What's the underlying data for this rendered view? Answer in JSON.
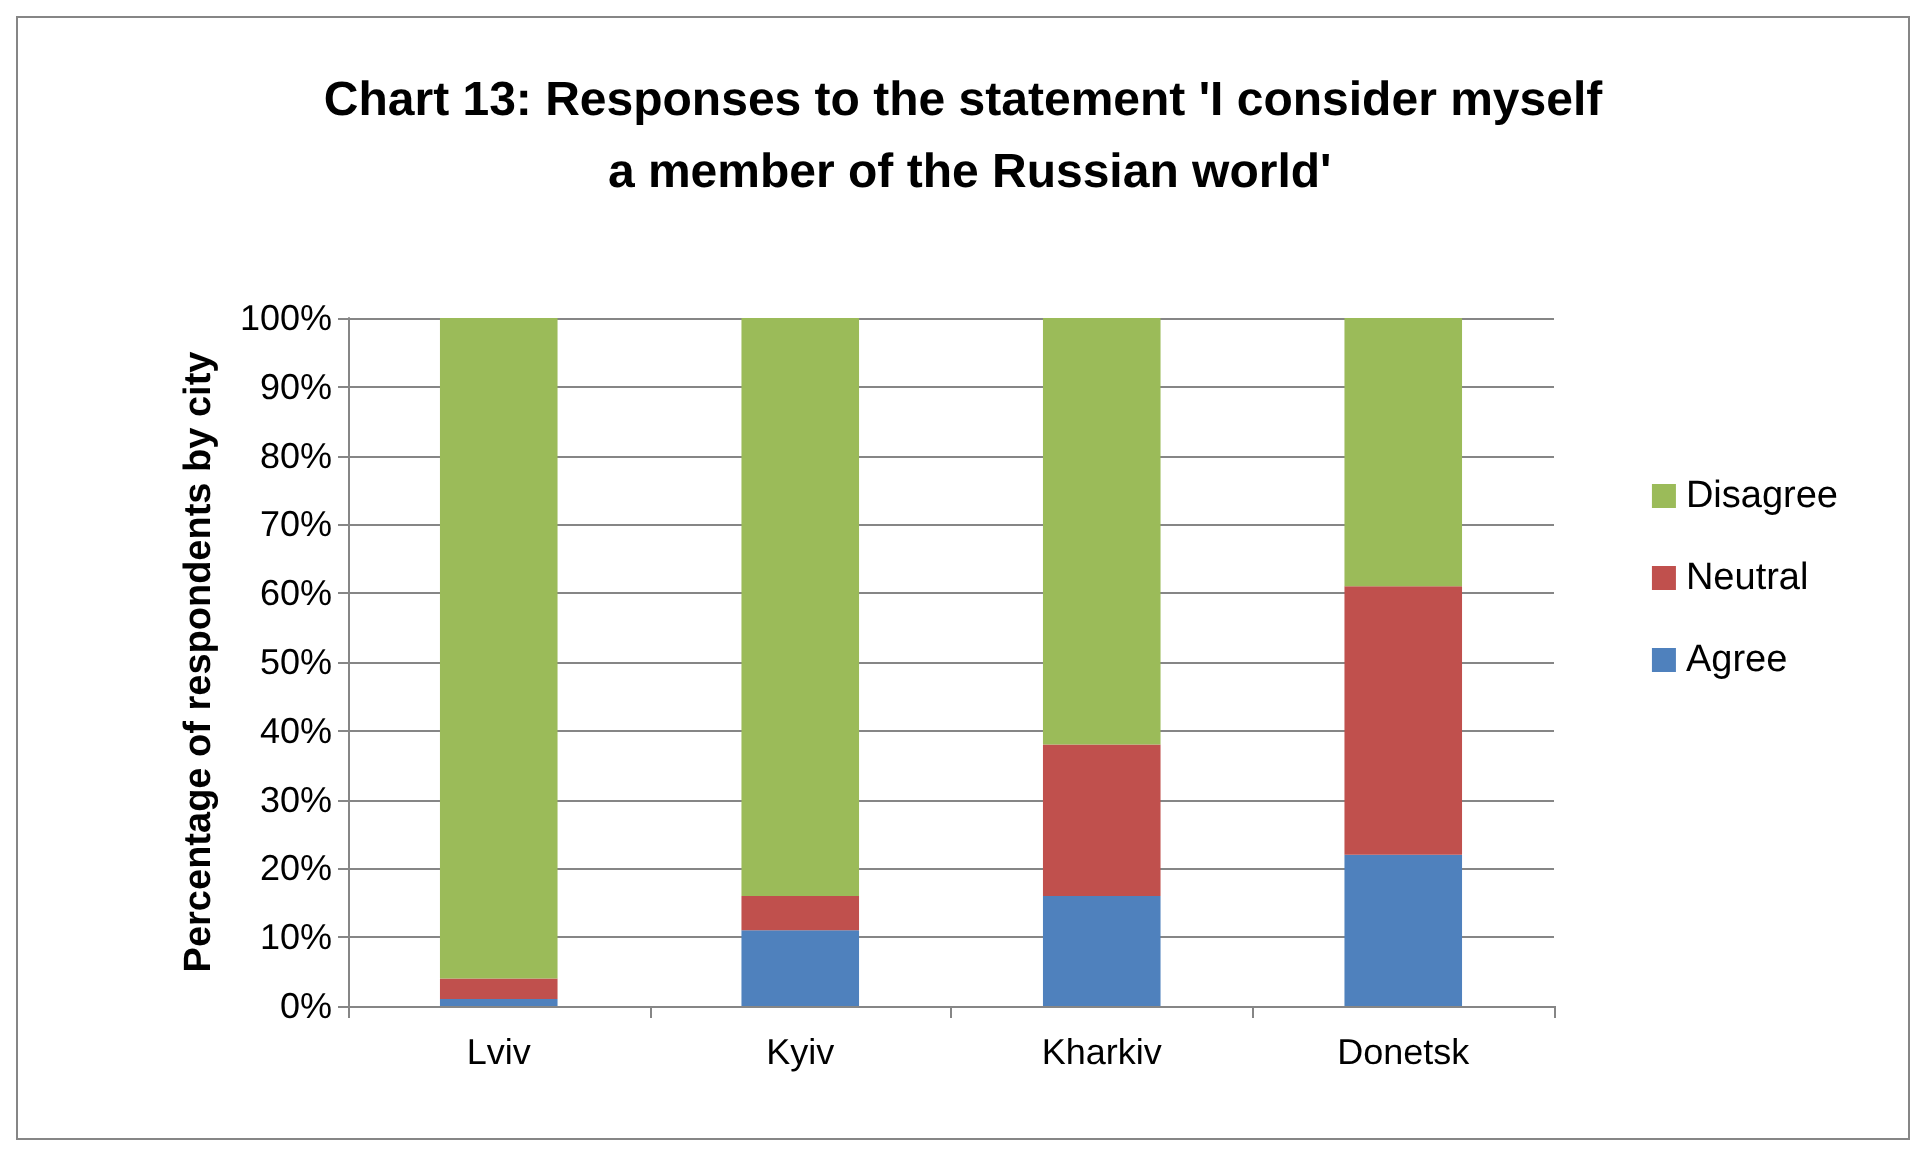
{
  "chart_data": {
    "type": "bar",
    "stacked": true,
    "title": "Chart 13: Responses to the statement 'I consider myself a member of the Russian world'",
    "ylabel": "Percentage of respondents by city",
    "categories": [
      "Lviv",
      "Kyiv",
      "Kharkiv",
      "Donetsk"
    ],
    "series": [
      {
        "name": "Agree",
        "color": "#4f81bd",
        "values": [
          1,
          11,
          16,
          22
        ]
      },
      {
        "name": "Neutral",
        "color": "#c0504d",
        "values": [
          3,
          5,
          22,
          39
        ]
      },
      {
        "name": "Disagree",
        "color": "#9bbb59",
        "values": [
          96,
          84,
          62,
          39
        ]
      }
    ],
    "ylim": [
      0,
      100
    ],
    "yticks": [
      {
        "value": 0,
        "label": "0%"
      },
      {
        "value": 10,
        "label": "10%"
      },
      {
        "value": 20,
        "label": "20%"
      },
      {
        "value": 30,
        "label": "30%"
      },
      {
        "value": 40,
        "label": "40%"
      },
      {
        "value": 50,
        "label": "50%"
      },
      {
        "value": 60,
        "label": "60%"
      },
      {
        "value": 70,
        "label": "70%"
      },
      {
        "value": 80,
        "label": "80%"
      },
      {
        "value": 90,
        "label": "90%"
      },
      {
        "value": 100,
        "label": "100%"
      }
    ],
    "grid": "y",
    "legend": "right"
  }
}
